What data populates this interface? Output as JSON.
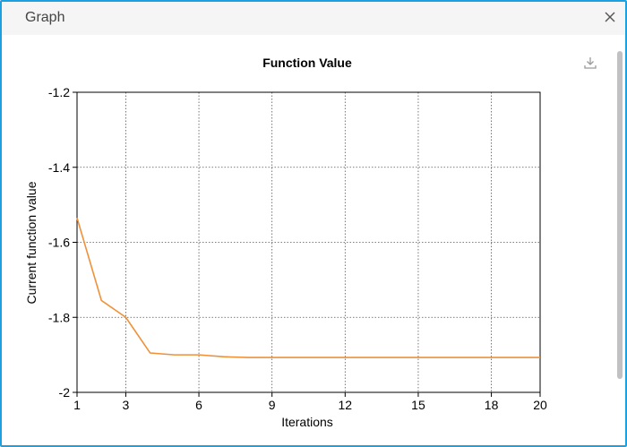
{
  "window": {
    "title": "Graph"
  },
  "icons": {
    "close": "close-icon",
    "download": "download-icon"
  },
  "colors": {
    "accent": "#1ba1e2",
    "series": "#f0913a"
  },
  "chart_data": {
    "type": "line",
    "title": "Function Value",
    "xlabel": "Iterations",
    "ylabel": "Current function value",
    "xlim": [
      1,
      20
    ],
    "ylim": [
      -2,
      -1.2
    ],
    "xticks": [
      1,
      3,
      6,
      9,
      12,
      15,
      18,
      20
    ],
    "yticks": [
      -2,
      -1.8,
      -1.6,
      -1.4,
      -1.2
    ],
    "ytick_labels": [
      "-2",
      "-1.8",
      "-1.6",
      "-1.4",
      "-1.2"
    ],
    "grid": true,
    "series": [
      {
        "x": [
          1,
          2,
          3,
          4,
          5,
          6,
          7,
          8,
          9,
          10,
          11,
          12,
          13,
          14,
          15,
          16,
          17,
          18,
          19,
          20
        ],
        "y": [
          -1.535,
          -1.755,
          -1.8,
          -1.895,
          -1.9,
          -1.9,
          -1.905,
          -1.907,
          -1.907,
          -1.907,
          -1.907,
          -1.907,
          -1.907,
          -1.907,
          -1.907,
          -1.907,
          -1.907,
          -1.907,
          -1.907,
          -1.907
        ]
      }
    ]
  }
}
